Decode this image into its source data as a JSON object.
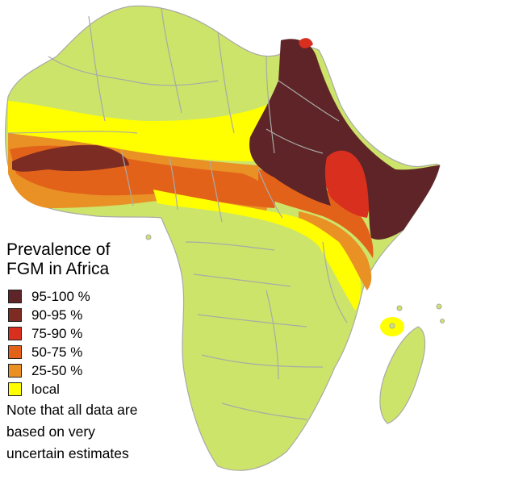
{
  "legend": {
    "title_line1": "Prevalence of",
    "title_line2": "FGM in Africa",
    "items": [
      {
        "label": "95-100 %",
        "color": "#5e2427"
      },
      {
        "label": "90-95 %",
        "color": "#7c2c22"
      },
      {
        "label": "75-90 %",
        "color": "#d92f1e"
      },
      {
        "label": "50-75 %",
        "color": "#e2621a"
      },
      {
        "label": "25-50 %",
        "color": "#e99124"
      },
      {
        "label": "local",
        "color": "#ffff00"
      }
    ]
  },
  "note": {
    "line1": "Note that all data are",
    "line2": "based on very",
    "line3": "uncertain estimates"
  },
  "colors": {
    "land": "#cde46a",
    "borders": "#a9aaa6",
    "ocean": "#ffffff"
  }
}
